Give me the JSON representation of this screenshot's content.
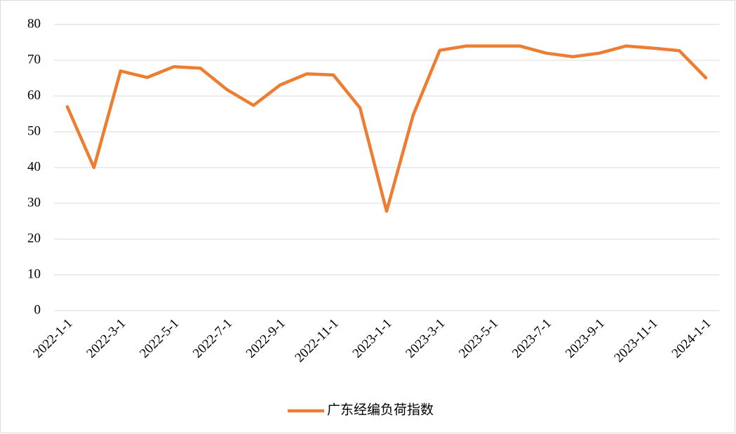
{
  "chart_data": {
    "type": "line",
    "categories": [
      "2022-1-1",
      null,
      "2022-3-1",
      null,
      "2022-5-1",
      null,
      "2022-7-1",
      null,
      "2022-9-1",
      null,
      "2022-11-1",
      null,
      "2023-1-1",
      null,
      "2023-3-1",
      null,
      "2023-5-1",
      null,
      "2023-7-1",
      null,
      "2023-9-1",
      null,
      "2023-11-1",
      null,
      "2024-1-1"
    ],
    "series": [
      {
        "name": "广东经编负荷指数",
        "color": "#ed7d31",
        "values": [
          57,
          40,
          67,
          65.2,
          68.2,
          67.8,
          61.8,
          57.4,
          63.1,
          66.2,
          65.9,
          56.7,
          27.8,
          54.7,
          72.8,
          74,
          74,
          74,
          72,
          71,
          72,
          74,
          73.4,
          72.7,
          65.1
        ]
      }
    ],
    "ylim": [
      0,
      80
    ],
    "yticks": [
      0,
      10,
      20,
      30,
      40,
      50,
      60,
      70,
      80
    ],
    "grid": true,
    "legend": "bottom"
  }
}
